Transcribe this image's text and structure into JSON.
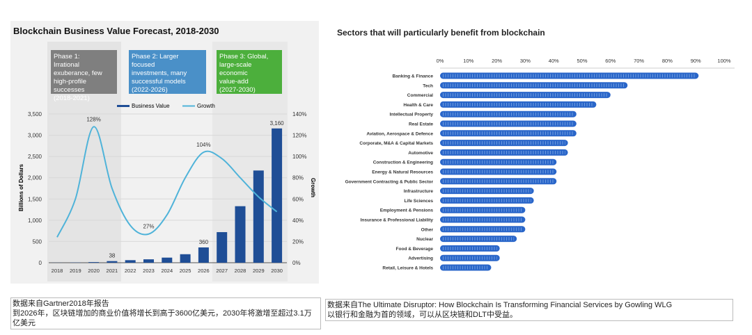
{
  "chart_data": [
    {
      "type": "bar+line",
      "title": "Blockchain Business Value Forecast, 2018-2030",
      "ylabel": "Billions of Dollars",
      "y2label": "Growth",
      "ylim": [
        0,
        3500
      ],
      "y2lim": [
        0,
        140
      ],
      "yticks": [
        "0",
        "500",
        "1,000",
        "1,500",
        "2,000",
        "2,500",
        "3,000",
        "3,500"
      ],
      "y2ticks": [
        "0%",
        "20%",
        "40%",
        "60%",
        "80%",
        "100%",
        "120%",
        "140%"
      ],
      "categories": [
        "2018",
        "2019",
        "2020",
        "2021",
        "2022",
        "2023",
        "2024",
        "2025",
        "2026",
        "2027",
        "2028",
        "2029",
        "2030"
      ],
      "legend": [
        "Business Value",
        "Growth"
      ],
      "legend_position": "top",
      "grid": true,
      "series": [
        {
          "name": "Business Value",
          "type": "bar",
          "color": "#1f4e96",
          "values": [
            2,
            5,
            15,
            38,
            60,
            80,
            120,
            200,
            360,
            720,
            1330,
            2170,
            3160
          ]
        },
        {
          "name": "Growth",
          "type": "line",
          "color": "#4fb3d9",
          "values": [
            24,
            60,
            128,
            70,
            35,
            27,
            45,
            80,
            104,
            98,
            80,
            62,
            48
          ]
        }
      ],
      "data_labels": [
        {
          "category": "2020",
          "series": "Growth",
          "text": "128%"
        },
        {
          "category": "2021",
          "series": "Business Value",
          "text": "38"
        },
        {
          "category": "2023",
          "series": "Growth",
          "text": "27%"
        },
        {
          "category": "2026",
          "series": "Business Value",
          "text": "360"
        },
        {
          "category": "2026",
          "series": "Growth",
          "text": "104%"
        },
        {
          "category": "2030",
          "series": "Business Value",
          "text": "3,160"
        }
      ],
      "phases": [
        {
          "text": "Phase 1: Irrational exuberance, few high-profile successes (2018-2021)",
          "color": "#7f7f7f"
        },
        {
          "text": "Phase 2: Larger focused investments, many successful models (2022-2026)",
          "color": "#4a90c8"
        },
        {
          "text": "Phase 3: Global, large-scale economic value-add (2027-2030)",
          "color": "#4caf3c"
        }
      ]
    },
    {
      "type": "bar",
      "orientation": "horizontal",
      "title": "Sectors that will particularly benefit from blockchain",
      "xlim": [
        0,
        100
      ],
      "xticks": [
        "0%",
        "10%",
        "20%",
        "30%",
        "40%",
        "50%",
        "60%",
        "70%",
        "80%",
        "90%",
        "100%"
      ],
      "color": "#2a66c9",
      "categories": [
        "Banking & Finance",
        "Tech",
        "Commercial",
        "Health & Care",
        "Intellectual Property",
        "Real Estate",
        "Aviation, Aerospace & Defence",
        "Corporate, M&A & Capital Markets",
        "Automotive",
        "Construction & Engineering",
        "Energy & Natural Resources",
        "Government Contracting & Public Sector",
        "Infrastructure",
        "Life Sciences",
        "Employment & Pensions",
        "Insurance & Professional Liability",
        "Other",
        "Nuclear",
        "Food & Beverage",
        "Advertising",
        "Retail, Leisure & Hotels"
      ],
      "values": [
        91,
        66,
        60,
        55,
        48,
        48,
        48,
        45,
        45,
        41,
        41,
        41,
        33,
        33,
        30,
        30,
        30,
        27,
        21,
        21,
        18
      ]
    }
  ],
  "captions": {
    "left": [
      "数据来自Gartner2018年报告",
      "到2026年，区块链增加的商业价值将增长到高于3600亿美元，2030年将激增至超过3.1万亿美元"
    ],
    "right": [
      "数据来自The Ultimate Disruptor: How Blockchain Is Transforming Financial Services by Gowling WLG",
      "以银行和金融为首的领域，可以从区块链和DLT中受益。"
    ]
  }
}
